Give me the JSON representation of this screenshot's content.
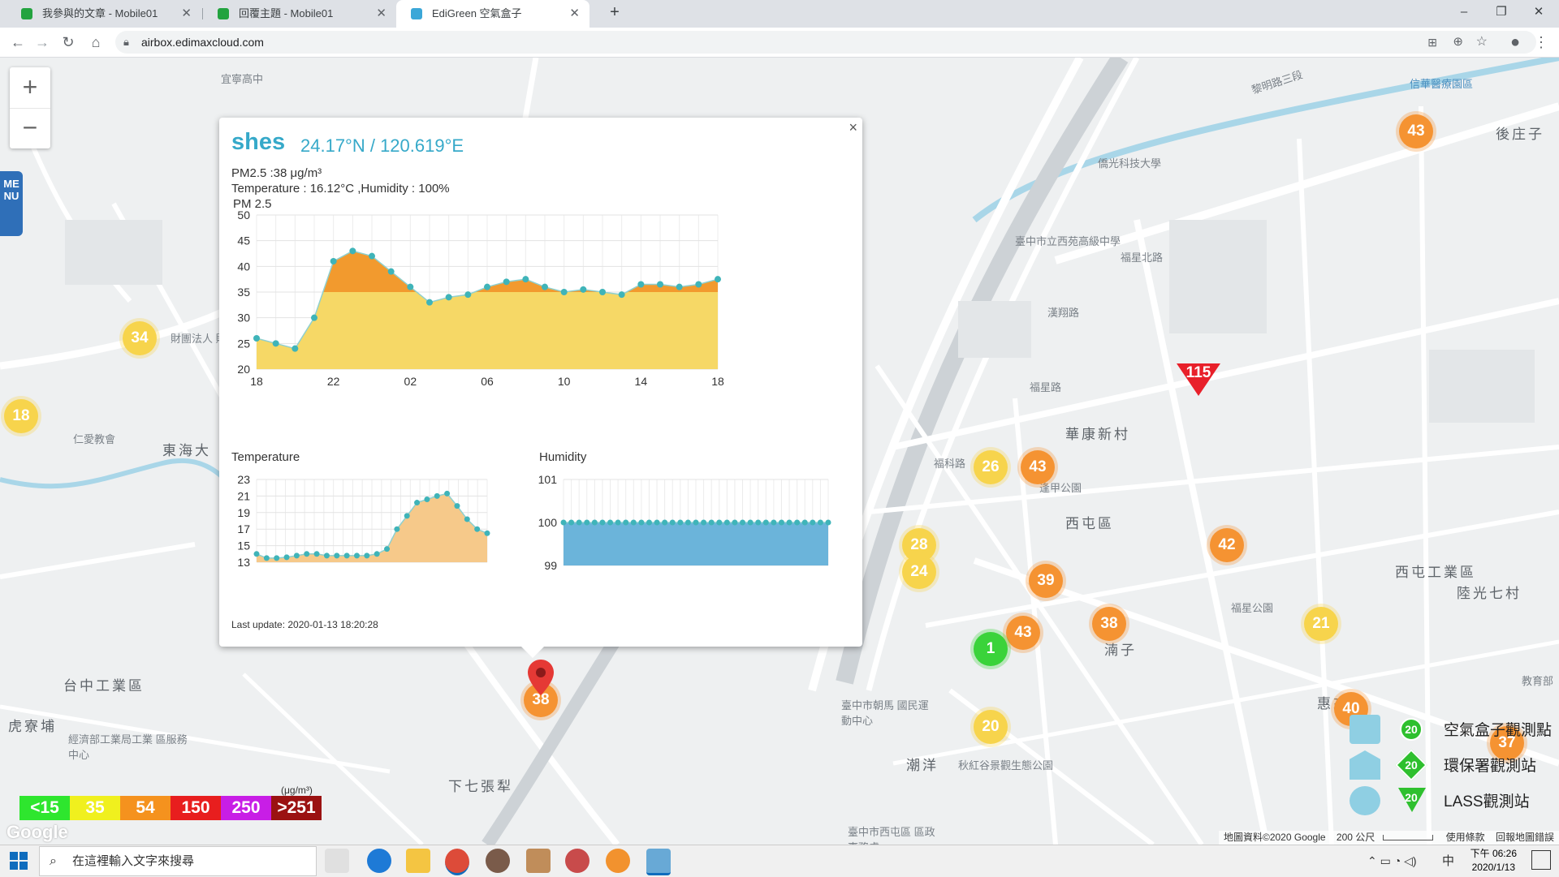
{
  "browser": {
    "tabs": [
      {
        "title": "我參與的文章 - Mobile01",
        "favicon_color": "#23a33f",
        "active": false
      },
      {
        "title": "回覆主題 - Mobile01",
        "favicon_color": "#23a33f",
        "active": false
      },
      {
        "title": "EdiGreen 空氣盒子",
        "favicon_color": "#3ba7d8",
        "active": true
      }
    ],
    "url": "airbox.edimaxcloud.com"
  },
  "popup": {
    "station": "shes",
    "coords": "24.17°N / 120.619°E",
    "pm25_line": "PM2.5 :38 μg/m³",
    "temp_hum_line": "Temperature : 16.12°C ,Humidity : 100%",
    "pm_chart_title": "PM 2.5",
    "temp_chart_title": "Temperature",
    "hum_chart_title": "Humidity",
    "last_update": "Last update: 2020-01-13 18:20:28",
    "close": "×"
  },
  "chart_data": [
    {
      "type": "area",
      "title": "PM 2.5",
      "x_ticks": [
        "18",
        "22",
        "02",
        "06",
        "10",
        "14",
        "18"
      ],
      "y_ticks": [
        20,
        25,
        30,
        35,
        40,
        45,
        50
      ],
      "ylim": [
        20,
        50
      ],
      "threshold": 35,
      "colors": {
        "above": "#f29a2e",
        "below": "#f6d866",
        "point": "#3fb4b9"
      },
      "values": [
        26,
        25,
        24,
        30,
        41,
        43,
        42,
        39,
        36,
        33,
        34,
        34.5,
        36,
        37,
        37.5,
        36,
        35,
        35.5,
        35,
        34.5,
        36.5,
        36.5,
        36,
        36.5,
        37.5
      ]
    },
    {
      "type": "area",
      "title": "Temperature",
      "y_ticks": [
        13,
        15,
        17,
        19,
        21,
        23
      ],
      "ylim": [
        13,
        23
      ],
      "colors": {
        "fill": "#f6c98a",
        "point": "#3fb4b9"
      },
      "values": [
        14,
        13.5,
        13.5,
        13.6,
        13.8,
        14,
        14,
        13.8,
        13.8,
        13.8,
        13.8,
        13.8,
        14,
        14.6,
        17,
        18.6,
        20.2,
        20.6,
        21,
        21.3,
        19.8,
        18.2,
        17,
        16.5
      ]
    },
    {
      "type": "area",
      "title": "Humidity",
      "y_ticks": [
        99,
        100,
        101
      ],
      "ylim": [
        99,
        101
      ],
      "colors": {
        "fill": "#6bb4da",
        "point": "#3fb4b9"
      },
      "values": [
        100,
        100,
        100,
        100,
        100,
        100,
        100,
        100,
        100,
        100,
        100,
        100,
        100,
        100,
        100,
        100,
        100,
        100,
        100,
        100,
        100,
        100,
        100,
        100,
        100,
        100,
        100,
        100,
        100,
        100,
        100,
        100,
        100,
        100,
        100
      ]
    }
  ],
  "map": {
    "labels": [
      "宜寧高中",
      "東海大",
      "仁愛教會",
      "財團法人 財團高級",
      "台中工業區",
      "虎寮埔",
      "經濟部工業局工業 區服務中心",
      "下七張犁",
      "華康新村",
      "西屯區",
      "福科路",
      "潮洋",
      "逢甲公園",
      "福星北路",
      "西屯工業區",
      "陸光七村",
      "惠來厝",
      "湳子",
      "臺中市立西苑高級中學",
      "福星公園",
      "臺中市朝馬 國民運動中心",
      "秋紅谷景觀生態公園",
      "僑光科技大學",
      "信華醫療園區",
      "後庄子",
      "黎明路三段",
      "漢翔路",
      "福星路",
      "臺中市西屯區 區政事務處",
      "教育部"
    ],
    "markers": [
      {
        "value": "43",
        "color": "orange"
      },
      {
        "value": "34",
        "color": "yellow"
      },
      {
        "value": "18",
        "color": "yellow"
      },
      {
        "value": "26",
        "color": "yellow"
      },
      {
        "value": "43",
        "color": "orange"
      },
      {
        "value": "28",
        "color": "yellow"
      },
      {
        "value": "24",
        "color": "yellow"
      },
      {
        "value": "39",
        "color": "orange"
      },
      {
        "value": "42",
        "color": "orange"
      },
      {
        "value": "43",
        "color": "orange"
      },
      {
        "value": "38",
        "color": "orange"
      },
      {
        "value": "21",
        "color": "yellow"
      },
      {
        "value": "1",
        "color": "green"
      },
      {
        "value": "20",
        "color": "yellow"
      },
      {
        "value": "40",
        "color": "orange"
      },
      {
        "value": "38",
        "color": "orange"
      },
      {
        "value": "37",
        "color": "orange"
      }
    ],
    "triangle_marker": "115",
    "zoom_in": "+",
    "zoom_out": "−",
    "menu": "MENU",
    "google": "Google",
    "footer": {
      "attribution": "地圖資料©2020 Google",
      "scale": "200 公尺",
      "terms": "使用條款",
      "report": "回報地圖錯誤"
    }
  },
  "legend": {
    "unit": "(μg/m³)",
    "items": [
      {
        "label": "<15",
        "color": "#2ee62e"
      },
      {
        "label": "35",
        "color": "#f0f01e"
      },
      {
        "label": "54",
        "color": "#f5921e"
      },
      {
        "label": "150",
        "color": "#e81e1e"
      },
      {
        "label": "250",
        "color": "#c81ee6"
      },
      {
        "label": ">251",
        "color": "#9b1212"
      }
    ]
  },
  "station_types": [
    {
      "label": "空氣盒子觀測點",
      "value": "20",
      "color": "#2ec02e"
    },
    {
      "label": "環保署觀測站",
      "value": "20",
      "color": "#2ec02e"
    },
    {
      "label": "LASS觀測站",
      "value": "20",
      "color": "#2ec02e"
    }
  ],
  "taskbar": {
    "search_placeholder": "在這裡輸入文字來搜尋",
    "time": "下午 06:26",
    "date": "2020/1/13",
    "ime": "中"
  }
}
